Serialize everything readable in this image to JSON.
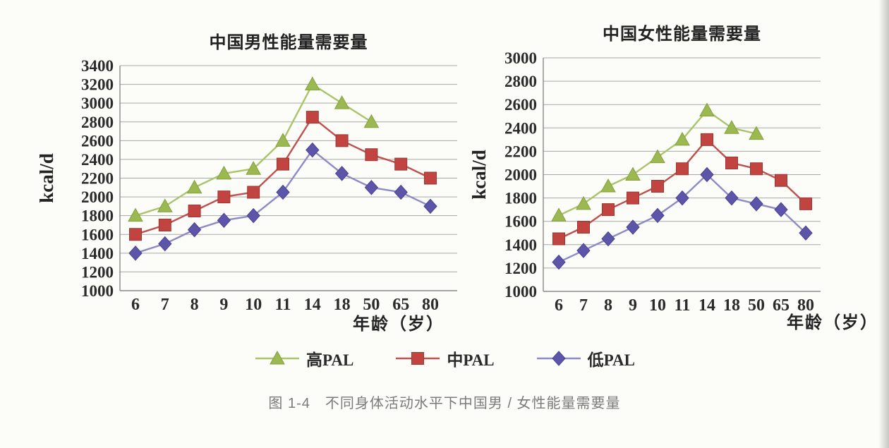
{
  "page": {
    "caption": "图 1-4　不同身体活动水平下中国男 / 女性能量需要量"
  },
  "theme": {
    "background": "#fcfcf9",
    "grid": "#a8a8a8",
    "axis": "#8a8a8a",
    "text": "#2b2b2b",
    "caption": "#7b7b7b"
  },
  "legend": [
    {
      "label": "高PAL",
      "marker": "triangle",
      "color": "#9cb850",
      "edge_color": "#83a03c",
      "line_color": "#abc46a"
    },
    {
      "label": "中PAL",
      "marker": "square",
      "color": "#c14440",
      "edge_color": "#9c3734",
      "line_color": "#c0504d"
    },
    {
      "label": "低PAL",
      "marker": "diamond",
      "color": "#5d55aa",
      "edge_color": "#49418f",
      "line_color": "#8e8ac5"
    }
  ],
  "chart_data": [
    {
      "id": "male",
      "type": "line",
      "title": "中国男性能量需要量",
      "ylabel": "kcal/d",
      "xlabel": "年龄（岁）",
      "categories": [
        "6",
        "7",
        "8",
        "9",
        "10",
        "11",
        "14",
        "18",
        "50",
        "65",
        "80"
      ],
      "ylim": [
        1000,
        3400
      ],
      "ytick_step": 200,
      "grid": true,
      "legend_position": "bottom-shared",
      "series": [
        {
          "name": "高PAL",
          "marker": "triangle",
          "color": "#9cb850",
          "edge_color": "#83a03c",
          "line_color": "#abc46a",
          "values": [
            1800,
            1900,
            2100,
            2250,
            2300,
            2600,
            3200,
            3000,
            2800,
            null,
            null
          ]
        },
        {
          "name": "中PAL",
          "marker": "square",
          "color": "#c14440",
          "edge_color": "#9c3734",
          "line_color": "#c0504d",
          "values": [
            1600,
            1700,
            1850,
            2000,
            2050,
            2350,
            2850,
            2600,
            2450,
            2350,
            2200
          ]
        },
        {
          "name": "低PAL",
          "marker": "diamond",
          "color": "#5d55aa",
          "edge_color": "#49418f",
          "line_color": "#8e8ac5",
          "values": [
            1400,
            1500,
            1650,
            1750,
            1800,
            2050,
            2500,
            2250,
            2100,
            2050,
            1900
          ]
        }
      ]
    },
    {
      "id": "female",
      "type": "line",
      "title": "中国女性能量需要量",
      "ylabel": "kcal/d",
      "xlabel": "年龄（岁）",
      "categories": [
        "6",
        "7",
        "8",
        "9",
        "10",
        "11",
        "14",
        "18",
        "50",
        "65",
        "80"
      ],
      "ylim": [
        1000,
        3000
      ],
      "ytick_step": 200,
      "grid": true,
      "legend_position": "bottom-shared",
      "series": [
        {
          "name": "高PAL",
          "marker": "triangle",
          "color": "#9cb850",
          "edge_color": "#83a03c",
          "line_color": "#abc46a",
          "values": [
            1650,
            1750,
            1900,
            2000,
            2150,
            2300,
            2550,
            2400,
            2350,
            null,
            null
          ]
        },
        {
          "name": "中PAL",
          "marker": "square",
          "color": "#c14440",
          "edge_color": "#9c3734",
          "line_color": "#c0504d",
          "values": [
            1450,
            1550,
            1700,
            1800,
            1900,
            2050,
            2300,
            2100,
            2050,
            1950,
            1750
          ]
        },
        {
          "name": "低PAL",
          "marker": "diamond",
          "color": "#5d55aa",
          "edge_color": "#49418f",
          "line_color": "#8e8ac5",
          "values": [
            1250,
            1350,
            1450,
            1550,
            1650,
            1800,
            2000,
            1800,
            1750,
            1700,
            1500
          ]
        }
      ]
    }
  ]
}
